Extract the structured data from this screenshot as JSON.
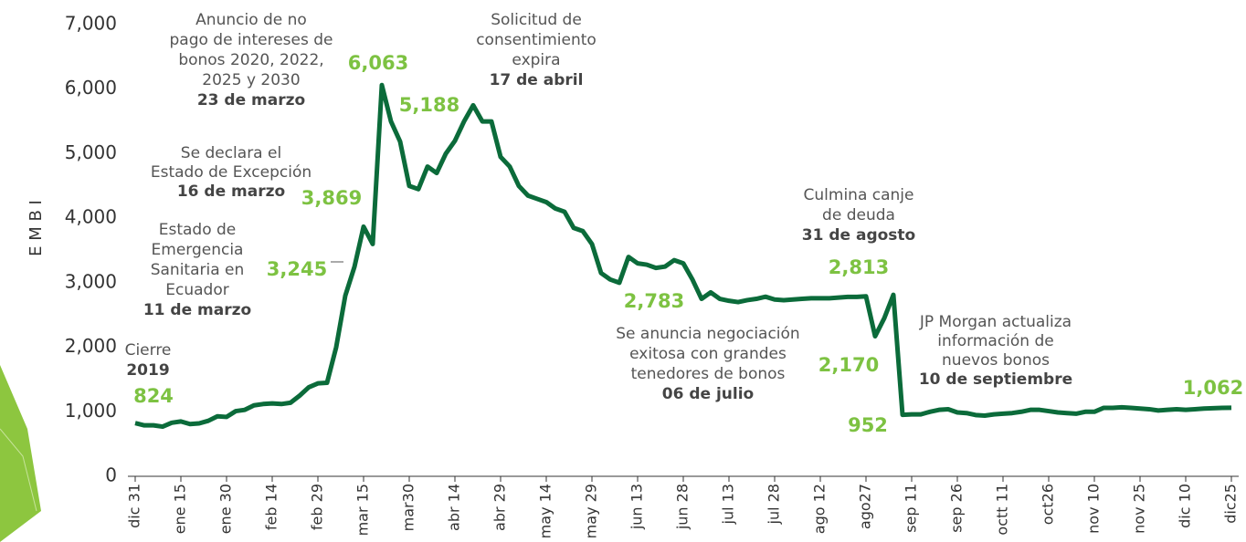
{
  "chart_data": {
    "type": "line",
    "y_label": "E M B I",
    "categories": [
      "dic 31",
      null,
      null,
      null,
      null,
      "ene 15",
      null,
      null,
      null,
      null,
      "ene 30",
      null,
      null,
      null,
      null,
      "feb 14",
      null,
      null,
      null,
      null,
      "feb 29",
      null,
      null,
      null,
      null,
      "mar 15",
      null,
      null,
      null,
      null,
      "mar30",
      null,
      null,
      null,
      null,
      "abr 14",
      null,
      null,
      null,
      null,
      "abr 29",
      null,
      null,
      null,
      null,
      "may 14",
      null,
      null,
      null,
      null,
      "may 29",
      null,
      null,
      null,
      null,
      "jun 13",
      null,
      null,
      null,
      null,
      "jun 28",
      null,
      null,
      null,
      null,
      "jul 13",
      null,
      null,
      null,
      null,
      "jul 28",
      null,
      null,
      null,
      null,
      "ago 12",
      null,
      null,
      null,
      null,
      "ago27",
      null,
      null,
      null,
      null,
      "sep 11",
      null,
      null,
      null,
      null,
      "sep 26",
      null,
      null,
      null,
      null,
      "octt 11",
      null,
      null,
      null,
      null,
      "oct26",
      null,
      null,
      null,
      null,
      "nov 10",
      null,
      null,
      null,
      null,
      "nov 25",
      null,
      null,
      null,
      null,
      "dic 10",
      null,
      null,
      null,
      null,
      "dic25"
    ],
    "values": [
      824,
      790,
      790,
      770,
      830,
      850,
      810,
      820,
      860,
      930,
      920,
      1010,
      1030,
      1100,
      1120,
      1130,
      1120,
      1140,
      1250,
      1380,
      1440,
      1450,
      2000,
      2800,
      3245,
      3869,
      3600,
      6063,
      5500,
      5188,
      4500,
      4450,
      4800,
      4700,
      5000,
      5200,
      5500,
      5750,
      5500,
      5500,
      4950,
      4800,
      4500,
      4350,
      4300,
      4250,
      4150,
      4100,
      3850,
      3800,
      3600,
      3150,
      3050,
      3000,
      3400,
      3300,
      3280,
      3230,
      3250,
      3350,
      3300,
      3050,
      2750,
      2850,
      2750,
      2720,
      2700,
      2730,
      2750,
      2783,
      2740,
      2730,
      2740,
      2750,
      2760,
      2760,
      2760,
      2770,
      2780,
      2780,
      2790,
      2170,
      2450,
      2813,
      952,
      960,
      960,
      1000,
      1030,
      1040,
      990,
      980,
      950,
      940,
      960,
      970,
      980,
      1000,
      1030,
      1030,
      1010,
      990,
      980,
      970,
      1000,
      1000,
      1060,
      1060,
      1070,
      1060,
      1050,
      1040,
      1020,
      1030,
      1040,
      1030,
      1040,
      1050,
      1055,
      1060,
      1062
    ],
    "value_labels": [
      "824",
      null,
      null,
      null,
      null,
      null,
      null,
      null,
      null,
      null,
      null,
      null,
      null,
      null,
      null,
      null,
      null,
      null,
      null,
      null,
      null,
      null,
      null,
      null,
      "3,245",
      "3,869",
      null,
      "6,063",
      null,
      "5,188",
      null,
      null,
      null,
      null,
      null,
      null,
      null,
      null,
      null,
      null,
      null,
      null,
      null,
      null,
      null,
      null,
      null,
      null,
      null,
      null,
      null,
      null,
      null,
      null,
      null,
      null,
      null,
      null,
      null,
      null,
      null,
      null,
      null,
      null,
      null,
      null,
      null,
      null,
      null,
      "2,783",
      null,
      null,
      null,
      null,
      null,
      null,
      null,
      null,
      null,
      null,
      null,
      "2,170",
      null,
      "2,813",
      "952",
      null,
      null,
      null,
      null,
      null,
      null,
      null,
      null,
      null,
      null,
      null,
      null,
      null,
      null,
      null,
      null,
      null,
      null,
      null,
      null,
      null,
      null,
      null,
      null,
      null,
      null,
      null,
      null,
      null,
      null,
      null,
      null,
      null,
      null,
      null,
      "1,062"
    ],
    "color": "#0b6b3a",
    "label_color": "#7dc242",
    "ylim": [
      0,
      7000
    ],
    "yticks": [
      0,
      {
        "value": 1000,
        "label": "1,000"
      },
      {
        "value": 2000,
        "label": "2,000"
      },
      {
        "value": 3000,
        "label": "3,000"
      },
      {
        "value": 4000,
        "label": "4,000"
      },
      {
        "value": 5000,
        "label": "5,000"
      },
      {
        "value": 6000,
        "label": "6,000"
      },
      {
        "value": 7000,
        "label": "7,000"
      }
    ],
    "annotations": [
      {
        "lines": [
          "Cierre"
        ],
        "date": "2019"
      },
      {
        "lines": [
          "Estado de",
          "Emergencia",
          "Sanitaria en",
          "Ecuador"
        ],
        "date": "11 de marzo"
      },
      {
        "lines": [
          "Se declara el",
          "Estado de Excepción"
        ],
        "date": "16 de marzo"
      },
      {
        "lines": [
          "Anuncio de no",
          "pago de intereses de",
          "bonos 2020, 2022,",
          "2025 y 2030"
        ],
        "date": "23 de marzo"
      },
      {
        "lines": [
          "Solicitud de",
          "consentimiento",
          "expira"
        ],
        "date": "17 de abril"
      },
      {
        "lines": [
          "Culmina canje",
          "de deuda"
        ],
        "date": "31 de agosto"
      },
      {
        "lines": [
          "Se anuncia negociación",
          "exitosa con grandes",
          "tenedores de bonos"
        ],
        "date": "06 de julio"
      },
      {
        "lines": [
          "JP Morgan actualiza",
          "información de",
          "nuevos bonos"
        ],
        "date": "10 de septiembre"
      }
    ]
  }
}
